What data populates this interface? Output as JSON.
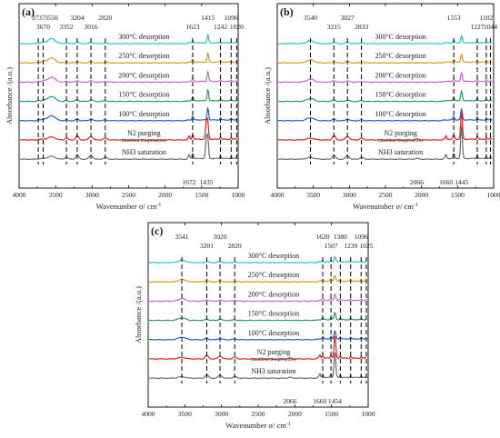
{
  "chart_data": [
    {
      "panel": "(a)",
      "type": "line",
      "xlabel": "Wavenumber σ/ cm",
      "xlabel_sup": "-1",
      "ylabel": "Absorbance /(a.u.)",
      "xlim": [
        4000,
        1000
      ],
      "xticks": [
        "4000",
        "3500",
        "3000",
        "2500",
        "2000",
        "1500",
        "1000"
      ],
      "peaks_top": [
        {
          "label": "3737",
          "x": 3737,
          "dashed": true
        },
        {
          "label": "3670",
          "x": 3670,
          "dashed": true
        },
        {
          "label": "3556",
          "x": 3556,
          "dashed": false
        },
        {
          "label": "3352",
          "x": 3352,
          "dashed": true
        },
        {
          "label": "3204",
          "x": 3204,
          "dashed": true
        },
        {
          "label": "3016",
          "x": 3016,
          "dashed": true
        },
        {
          "label": "2820",
          "x": 2820,
          "dashed": true
        },
        {
          "label": "1623",
          "x": 1623,
          "dashed": true
        },
        {
          "label": "1415",
          "x": 1415,
          "dashed": false
        },
        {
          "label": "1242",
          "x": 1242,
          "dashed": true
        },
        {
          "label": "1096",
          "x": 1096,
          "dashed": true
        },
        {
          "label": "1020",
          "x": 1020,
          "dashed": true
        }
      ],
      "peaks_bottom": [
        {
          "label": "1672",
          "x": 1672
        },
        {
          "label": "1435",
          "x": 1435
        }
      ],
      "series": [
        {
          "name": "300°C desorption",
          "color": "#1fc4c4"
        },
        {
          "name": "250°C desorption",
          "color": "#d69a12"
        },
        {
          "name": "200°C desorption",
          "color": "#cc5fd6"
        },
        {
          "name": "150°C desorption",
          "color": "#22a05a"
        },
        {
          "name": "100°C desorption",
          "color": "#1f5fd1"
        },
        {
          "name": "N2 purging",
          "sub": "(ambient temperature)",
          "color": "#e02020"
        },
        {
          "name": "NH3 saturation",
          "color": "#6e6e6e"
        }
      ]
    },
    {
      "panel": "(b)",
      "type": "line",
      "xlabel": "Wavenumber σ/ cm",
      "xlabel_sup": "-1",
      "ylabel": "Absorbance /(a.u.)",
      "xlim": [
        4000,
        1000
      ],
      "xticks": [
        "4000",
        "3500",
        "3000",
        "2500",
        "2000",
        "1500",
        "1000"
      ],
      "peaks_top": [
        {
          "label": "3540",
          "x": 3540,
          "dashed": true
        },
        {
          "label": "3215",
          "x": 3215,
          "dashed": true
        },
        {
          "label": "3027",
          "x": 3027,
          "dashed": true
        },
        {
          "label": "2833",
          "x": 2833,
          "dashed": true
        },
        {
          "label": "1553",
          "x": 1553,
          "dashed": true
        },
        {
          "label": "1227",
          "x": 1227,
          "dashed": true
        },
        {
          "label": "1102",
          "x": 1102,
          "dashed": true
        },
        {
          "label": "1044",
          "x": 1044,
          "dashed": true
        }
      ],
      "peaks_bottom": [
        {
          "label": "2066",
          "x": 2066
        },
        {
          "label": "1660",
          "x": 1660
        },
        {
          "label": "1445",
          "x": 1445
        }
      ],
      "series": [
        {
          "name": "300°C desorption",
          "color": "#1fc4c4"
        },
        {
          "name": "250°C desorption",
          "color": "#d69a12"
        },
        {
          "name": "200°C desorption",
          "color": "#cc5fd6"
        },
        {
          "name": "150°C desorption",
          "color": "#22a05a"
        },
        {
          "name": "100°C desorption",
          "color": "#1f5fd1"
        },
        {
          "name": "N2 purging",
          "sub": "(ambient temperature)",
          "color": "#e02020"
        },
        {
          "name": "NH3 saturation",
          "color": "#6e6e6e"
        }
      ]
    },
    {
      "panel": "(c)",
      "type": "line",
      "xlabel": "Wavenumber σ/ cm",
      "xlabel_sup": "-1",
      "ylabel": "Absorbance /(a.u.)",
      "xlim": [
        4000,
        1000
      ],
      "xticks": [
        "4000",
        "3500",
        "3000",
        "2500",
        "2000",
        "1500",
        "1000"
      ],
      "peaks_top": [
        {
          "label": "3541",
          "x": 3541,
          "dashed": true
        },
        {
          "label": "3201",
          "x": 3201,
          "dashed": true
        },
        {
          "label": "3020",
          "x": 3020,
          "dashed": true
        },
        {
          "label": "2820",
          "x": 2820,
          "dashed": true
        },
        {
          "label": "1620",
          "x": 1620,
          "dashed": true
        },
        {
          "label": "1507",
          "x": 1507,
          "dashed": true
        },
        {
          "label": "1380",
          "x": 1380,
          "dashed": true
        },
        {
          "label": "1239",
          "x": 1239,
          "dashed": true
        },
        {
          "label": "1096",
          "x": 1096,
          "dashed": true
        },
        {
          "label": "1025",
          "x": 1025,
          "dashed": true
        }
      ],
      "peaks_bottom": [
        {
          "label": "2066",
          "x": 2066
        },
        {
          "label": "1660",
          "x": 1660
        },
        {
          "label": "1454",
          "x": 1454
        }
      ],
      "series": [
        {
          "name": "300°C desorption",
          "color": "#1fc4c4"
        },
        {
          "name": "250°C desorption",
          "color": "#d69a12"
        },
        {
          "name": "200°C desorption",
          "color": "#cc5fd6"
        },
        {
          "name": "150°C desorption",
          "color": "#22a05a"
        },
        {
          "name": "100°C desorption",
          "color": "#1f5fd1"
        },
        {
          "name": "N2 purging",
          "sub": "(ambient temperature)",
          "color": "#e02020"
        },
        {
          "name": "NH3 saturation",
          "color": "#6e6e6e"
        }
      ]
    }
  ]
}
